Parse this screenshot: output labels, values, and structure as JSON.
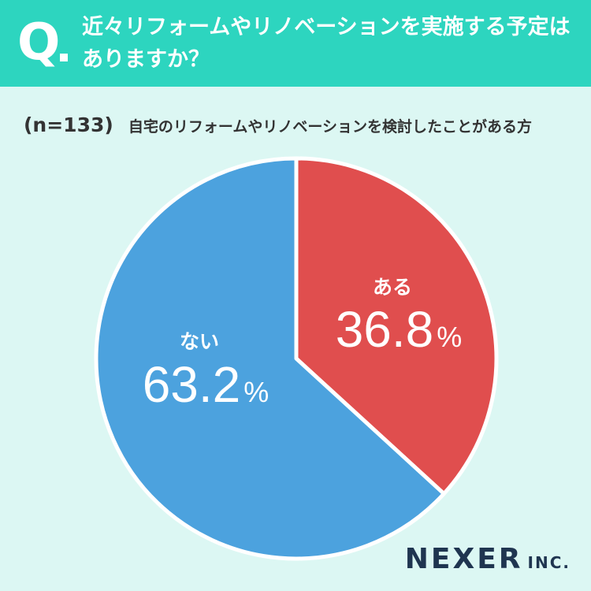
{
  "header": {
    "q_label": "Q",
    "question": "近々リフォームやリノベーションを実施する予定はありますか？"
  },
  "subtitle": {
    "sample": "(n=133)",
    "text": "自宅のリフォームやリノベーションを検討したことがある方"
  },
  "colors": {
    "header_bg": "#2dd5bf",
    "page_bg": "#dcf7f3",
    "yes": "#e04e4e",
    "no": "#4ca2de"
  },
  "chart_data": {
    "type": "pie",
    "slices": [
      {
        "label": "ある",
        "value": 36.8,
        "display": "36.8",
        "unit": "%",
        "color": "#e04e4e"
      },
      {
        "label": "ない",
        "value": 63.2,
        "display": "63.2",
        "unit": "%",
        "color": "#4ca2de"
      }
    ]
  },
  "logo": {
    "main": "NEXER",
    "suffix": "INC."
  }
}
